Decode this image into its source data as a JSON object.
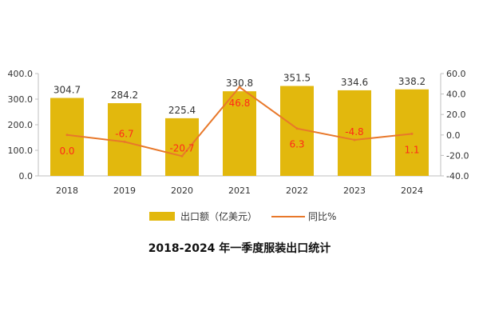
{
  "chart_data": {
    "type": "bar",
    "title": "2018-2024 年一季度服装出口统计",
    "categories": [
      "2018",
      "2019",
      "2020",
      "2021",
      "2022",
      "2023",
      "2024"
    ],
    "series": [
      {
        "name": "出口额（亿美元）",
        "kind": "bar",
        "axis": "left",
        "values": [
          304.7,
          284.2,
          225.4,
          330.8,
          351.5,
          334.6,
          338.2
        ],
        "labels": [
          "304.7",
          "284.2",
          "225.4",
          "330.8",
          "351.5",
          "334.6",
          "338.2"
        ]
      },
      {
        "name": "同比%",
        "kind": "line",
        "axis": "right",
        "values": [
          0.0,
          -6.7,
          -20.7,
          46.8,
          6.3,
          -4.8,
          1.1
        ],
        "labels": [
          "0.0",
          "-6.7",
          "-20.7",
          "46.8",
          "6.3",
          "-4.8",
          "1.1"
        ]
      }
    ],
    "y_left": {
      "ylim": [
        0,
        400
      ],
      "ticks": [
        0,
        100,
        200,
        300,
        400
      ],
      "tick_labels": [
        "0.0",
        "100.0",
        "200.0",
        "300.0",
        "400.0"
      ]
    },
    "y_right": {
      "ylim": [
        -40,
        60
      ],
      "ticks": [
        -40,
        -20,
        0,
        20,
        40,
        60
      ],
      "tick_labels": [
        "-40.0",
        "-20.0",
        "0.0",
        "20.0",
        "40.0",
        "60.0"
      ]
    },
    "legend": "bottom-center",
    "grid": false
  },
  "colors": {
    "bar": "#e2b80d",
    "line": "#e8782a",
    "line_label": "#ff2a1a",
    "axis": "#bfbfbf",
    "text": "#333333"
  }
}
